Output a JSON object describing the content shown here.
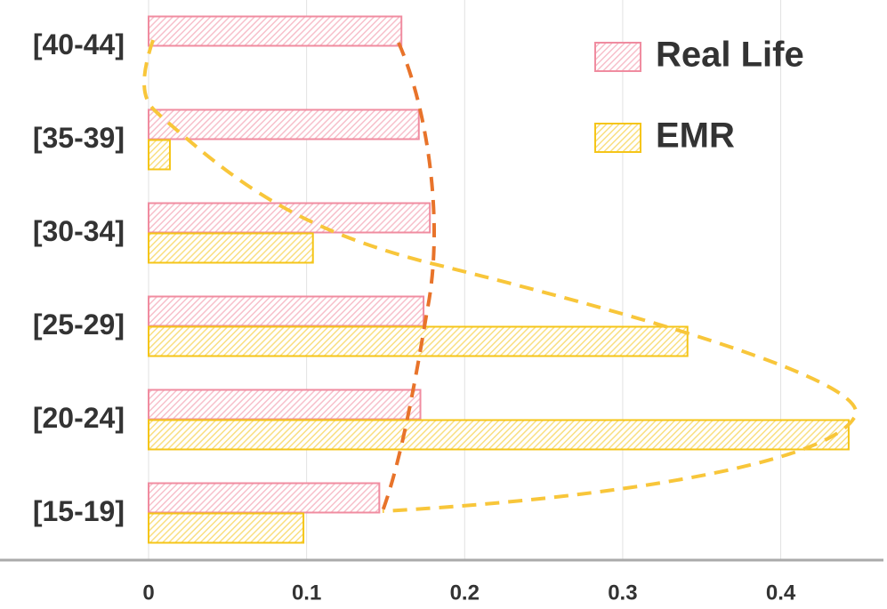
{
  "chart_data": {
    "type": "barh",
    "categories": [
      "[40-44]",
      "[35-39]",
      "[30-34]",
      "[25-29]",
      "[20-24]",
      "[15-19]"
    ],
    "series": [
      {
        "name": "Real Life",
        "color": "#f08ca0",
        "values": [
          0.16,
          0.171,
          0.178,
          0.174,
          0.172,
          0.146
        ]
      },
      {
        "name": "EMR",
        "color": "#f5c518",
        "values": [
          0,
          0.0135,
          0.104,
          0.341,
          0.443,
          0.098
        ]
      }
    ],
    "xlim": [
      0,
      0.465
    ],
    "xticks": [
      0,
      0.1,
      0.2,
      0.3,
      0.4
    ],
    "grid": true
  }
}
